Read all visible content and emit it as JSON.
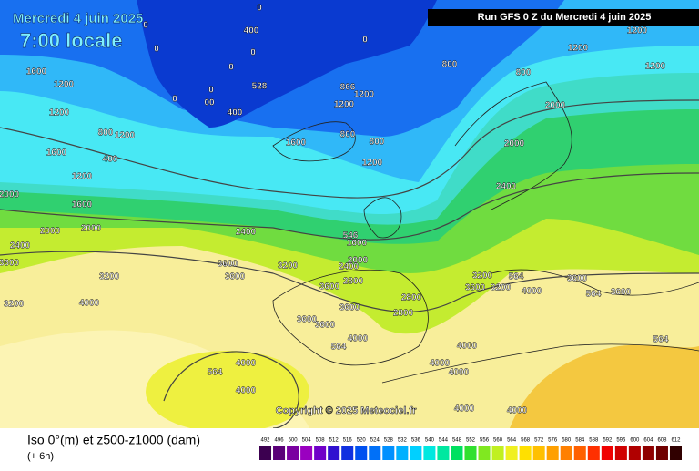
{
  "header": {
    "date": "Mercredi 4 juin 2025",
    "time": "7:00 locale",
    "run": "Run GFS 0 Z du Mercredi 4 juin 2025"
  },
  "copyright": "Copyright © 2025 Meteociel.fr",
  "footer": {
    "title": "Iso 0°(m) et z500-z1000 (dam)",
    "step": "(+ 6h)"
  },
  "contour_labels": [
    "0",
    "0",
    "400",
    "0",
    "0",
    "0",
    "0",
    "528",
    "0",
    "0",
    "00",
    "400",
    "800",
    "800",
    "1200",
    "1200",
    "1200",
    "1600",
    "1200",
    "1200",
    "800",
    "1200",
    "400",
    "1600",
    "1200",
    "1600",
    "2000",
    "2000",
    "866",
    "1200",
    "1200",
    "1600",
    "800",
    "800",
    "1200",
    "2000",
    "2400",
    "2000",
    "2400",
    "546",
    "1600",
    "3600",
    "3600",
    "3200",
    "2000",
    "2400",
    "3600",
    "2800",
    "3600",
    "2800",
    "2800",
    "3200",
    "3600",
    "3200",
    "564",
    "4000",
    "3600",
    "3600",
    "564",
    "3200",
    "3200",
    "4000",
    "3600",
    "3600",
    "564",
    "4000",
    "4000",
    "4000",
    "4000",
    "4000",
    "4000",
    "564",
    "4000",
    "4000",
    "564",
    "2000",
    "3600",
    "2400"
  ],
  "legend": {
    "values": [
      492,
      496,
      500,
      504,
      508,
      512,
      516,
      520,
      524,
      528,
      532,
      536,
      540,
      544,
      548,
      552,
      556,
      560,
      564,
      568,
      572,
      576,
      580,
      584,
      588,
      592,
      596,
      600,
      604,
      608,
      612
    ],
    "colors": [
      "#3c0050",
      "#5a0078",
      "#7a00a0",
      "#9a00c0",
      "#7000c8",
      "#3010d0",
      "#1030e0",
      "#0050f0",
      "#0070f8",
      "#0090ff",
      "#00b0ff",
      "#00d0ff",
      "#00e8e0",
      "#00e8a0",
      "#00e060",
      "#30e030",
      "#80e820",
      "#c0f020",
      "#f0f020",
      "#ffe000",
      "#ffc000",
      "#ffa000",
      "#ff8000",
      "#ff6000",
      "#ff3000",
      "#f00000",
      "#d00000",
      "#b00000",
      "#900000",
      "#700000",
      "#300000"
    ]
  }
}
